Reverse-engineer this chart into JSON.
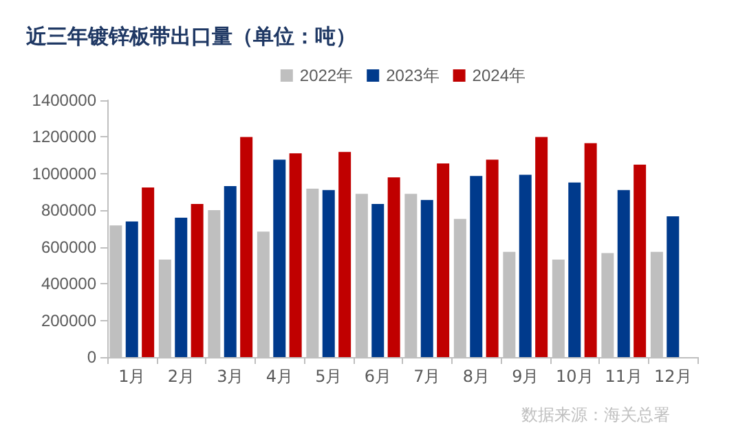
{
  "chart_data": {
    "type": "bar",
    "title": "近三年镀锌板带出口量（单位：吨）",
    "categories": [
      "1月",
      "2月",
      "3月",
      "4月",
      "5月",
      "6月",
      "7月",
      "8月",
      "9月",
      "10月",
      "11月",
      "12月"
    ],
    "series": [
      {
        "name": "2022年",
        "color": "#bfbfbf",
        "values": [
          718000,
          532000,
          801000,
          684000,
          918000,
          890000,
          890000,
          753000,
          574000,
          532000,
          567000,
          574000
        ]
      },
      {
        "name": "2023年",
        "color": "#003a8c",
        "values": [
          739000,
          760000,
          932000,
          1076000,
          911000,
          835000,
          856000,
          987000,
          994000,
          952000,
          911000,
          767000
        ]
      },
      {
        "name": "2024年",
        "color": "#c00000",
        "values": [
          925000,
          835000,
          1200000,
          1111000,
          1118000,
          980000,
          1056000,
          1076000,
          1200000,
          1166000,
          1049000,
          null
        ]
      }
    ],
    "ylim": [
      0,
      1400000
    ],
    "yticks": [
      0,
      200000,
      400000,
      600000,
      800000,
      1000000,
      1200000,
      1400000
    ],
    "grid": false,
    "legend": "top right",
    "annotations": [
      "数据来源：海关总署"
    ]
  }
}
